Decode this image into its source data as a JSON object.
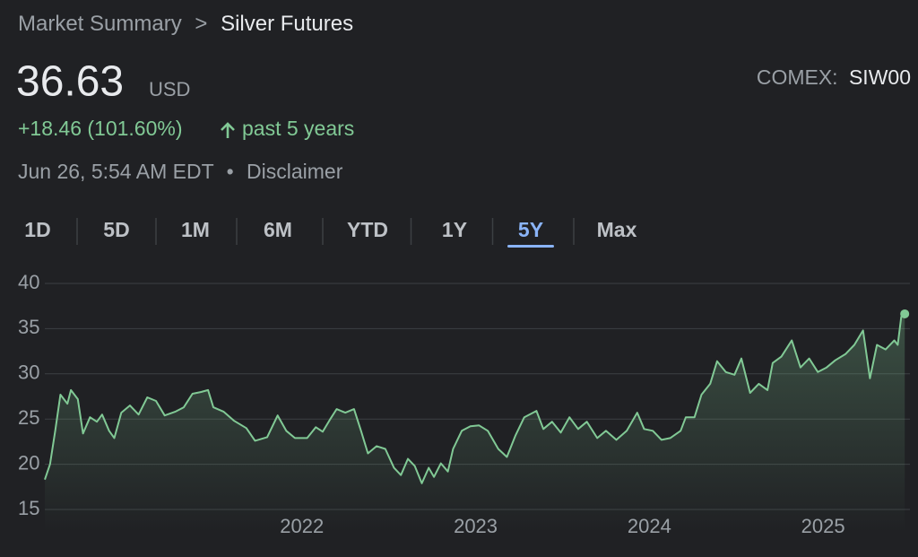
{
  "breadcrumb": {
    "parent": "Market Summary",
    "separator": ">",
    "current": "Silver Futures"
  },
  "quote": {
    "price": "36.63",
    "currency": "USD",
    "exchange": "COMEX:",
    "symbol": "SIW00",
    "change": "+18.46 (101.60%)",
    "period": "past 5 years",
    "timestamp": "Jun 26, 5:54 AM EDT",
    "bullet": "•",
    "disclaimer": "Disclaimer"
  },
  "ranges": {
    "items": [
      "1D",
      "5D",
      "1M",
      "6M",
      "YTD",
      "1Y",
      "5Y",
      "Max"
    ],
    "selected": 6
  },
  "chart_data": {
    "type": "line",
    "color": "#81c995",
    "grid": true,
    "x": [
      2020.52,
      2020.55,
      2020.58,
      2020.61,
      2020.65,
      2020.67,
      2020.71,
      2020.74,
      2020.78,
      2020.82,
      2020.85,
      2020.89,
      2020.92,
      2020.96,
      2021.01,
      2021.06,
      2021.11,
      2021.16,
      2021.21,
      2021.27,
      2021.32,
      2021.37,
      2021.42,
      2021.46,
      2021.49,
      2021.55,
      2021.61,
      2021.68,
      2021.73,
      2021.8,
      2021.86,
      2021.91,
      2021.96,
      2022.03,
      2022.08,
      2022.12,
      2022.16,
      2022.2,
      2022.25,
      2022.3,
      2022.34,
      2022.38,
      2022.43,
      2022.48,
      2022.53,
      2022.57,
      2022.61,
      2022.65,
      2022.69,
      2022.73,
      2022.76,
      2022.8,
      2022.84,
      2022.87,
      2022.92,
      2022.97,
      2023.02,
      2023.07,
      2023.13,
      2023.18,
      2023.23,
      2023.28,
      2023.35,
      2023.39,
      2023.44,
      2023.49,
      2023.54,
      2023.59,
      2023.64,
      2023.7,
      2023.75,
      2023.81,
      2023.87,
      2023.93,
      2023.97,
      2024.02,
      2024.07,
      2024.12,
      2024.18,
      2024.21,
      2024.26,
      2024.3,
      2024.35,
      2024.39,
      2024.44,
      2024.49,
      2024.53,
      2024.58,
      2024.63,
      2024.68,
      2024.71,
      2024.76,
      2024.82,
      2024.87,
      2024.92,
      2024.97,
      2025.02,
      2025.07,
      2025.13,
      2025.18,
      2025.23,
      2025.27,
      2025.31,
      2025.36,
      2025.41,
      2025.43,
      2025.45,
      2025.47
    ],
    "values": [
      18.3,
      20,
      23.7,
      27.7,
      26.7,
      28.2,
      27.2,
      23.4,
      25.2,
      24.7,
      25.5,
      23.7,
      22.9,
      25.7,
      26.5,
      25.5,
      27.4,
      27,
      25.4,
      25.8,
      26.3,
      27.8,
      28,
      28.2,
      26.3,
      25.8,
      24.8,
      24,
      22.6,
      23,
      25.4,
      23.7,
      22.9,
      22.9,
      24.1,
      23.6,
      24.9,
      26.1,
      25.7,
      26.1,
      23.7,
      21.2,
      22,
      21.7,
      19.6,
      18.8,
      20.6,
      19.8,
      17.9,
      19.6,
      18.6,
      20.1,
      19.2,
      21.7,
      23.7,
      24.2,
      24.3,
      23.7,
      21.7,
      20.8,
      23.2,
      25.2,
      25.9,
      23.9,
      24.7,
      23.5,
      25.2,
      23.9,
      24.7,
      22.9,
      23.7,
      22.7,
      23.7,
      25.7,
      23.9,
      23.7,
      22.7,
      22.9,
      23.7,
      25.2,
      25.2,
      27.7,
      28.9,
      31.4,
      30.2,
      29.9,
      31.7,
      27.9,
      28.9,
      28.2,
      31.2,
      31.9,
      33.7,
      30.7,
      31.7,
      30.2,
      30.7,
      31.5,
      32.2,
      33.2,
      34.8,
      29.5,
      33.2,
      32.7,
      33.7,
      33.2,
      36.3,
      36.63
    ],
    "xlim": [
      2020.52,
      2025.5
    ],
    "xticks": [
      2022,
      2023,
      2024,
      2025
    ],
    "ylim": [
      15,
      40
    ],
    "yticks": [
      15,
      20,
      25,
      30,
      35,
      40
    ]
  }
}
